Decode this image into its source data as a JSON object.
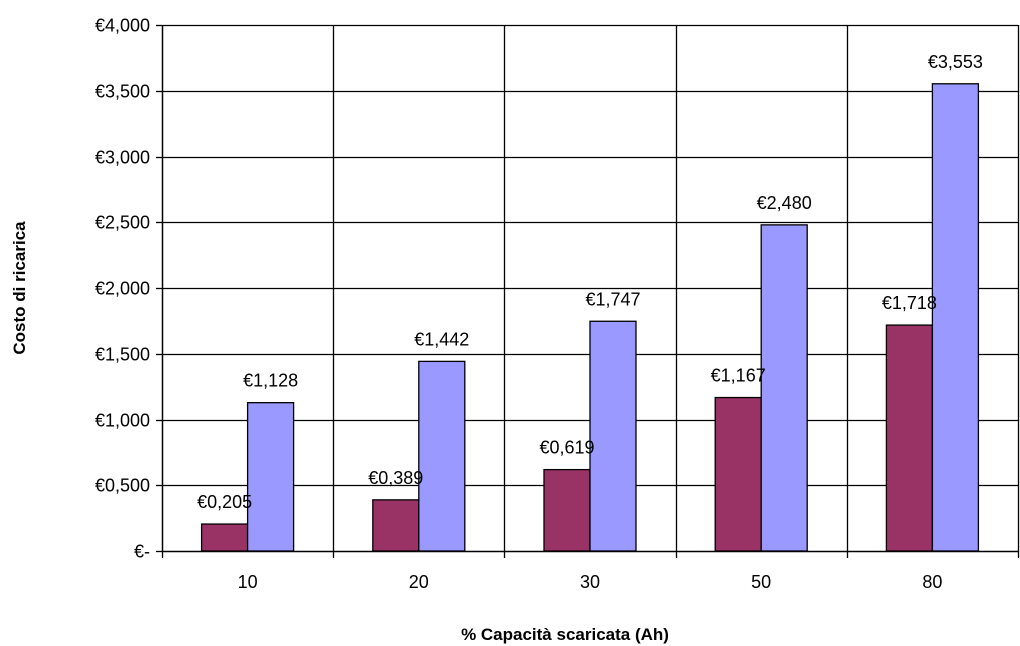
{
  "chart_data": {
    "type": "bar",
    "title": "",
    "xlabel": "% Capacità scaricata (Ah)",
    "ylabel": "Costo di ricarica",
    "categories": [
      "10",
      "20",
      "30",
      "50",
      "80"
    ],
    "ylim": [
      0,
      4
    ],
    "yticks": [
      0,
      0.5,
      1,
      1.5,
      2,
      2.5,
      3,
      3.5,
      4
    ],
    "ytick_labels": [
      "€-",
      "€0,500",
      "€1,000",
      "€1,500",
      "€2,000",
      "€2,500",
      "€3,000",
      "€3,500",
      "€4,000"
    ],
    "grid": true,
    "legend": "none",
    "series": [
      {
        "values": [
          0.205,
          0.389,
          0.619,
          1.167,
          1.718
        ],
        "value_labels": [
          "€0,205",
          "€0,389",
          "€0,619",
          "€1,167",
          "€1,718"
        ],
        "color": "#993366"
      },
      {
        "values": [
          1.128,
          1.442,
          1.747,
          2.48,
          3.553
        ],
        "value_labels": [
          "€1,128",
          "€1,442",
          "€1,747",
          "€2,480",
          "€3,553"
        ],
        "color": "#9999ff"
      }
    ]
  }
}
